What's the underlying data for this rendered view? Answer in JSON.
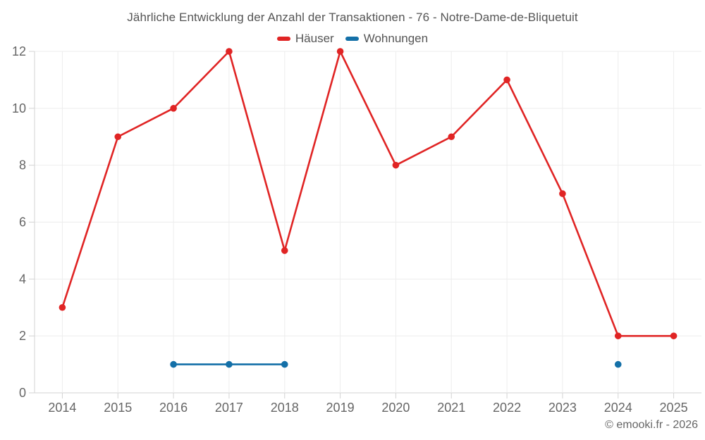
{
  "title": "Jährliche Entwicklung der Anzahl der Transaktionen - 76 - Notre-Dame-de-Bliquetuit",
  "footer": "© emooki.fr - 2026",
  "chart_data": {
    "type": "line",
    "title": "Jährliche Entwicklung der Anzahl der Transaktionen - 76 - Notre-Dame-de-Bliquetuit",
    "categories": [
      "2014",
      "2015",
      "2016",
      "2017",
      "2018",
      "2019",
      "2020",
      "2021",
      "2022",
      "2023",
      "2024",
      "2025"
    ],
    "series": [
      {
        "name": "Häuser",
        "color": "#e02424",
        "values": [
          3,
          9,
          10,
          12,
          5,
          12,
          8,
          9,
          11,
          7,
          2,
          2
        ]
      },
      {
        "name": "Wohnungen",
        "color": "#1470a8",
        "values": [
          null,
          null,
          1,
          1,
          1,
          null,
          null,
          null,
          null,
          null,
          1,
          null
        ]
      }
    ],
    "xlabel": "",
    "ylabel": "",
    "ylim": [
      0,
      12
    ],
    "yticks": [
      0,
      2,
      4,
      6,
      8,
      10,
      12
    ],
    "grid": true,
    "legend_position": "top"
  }
}
